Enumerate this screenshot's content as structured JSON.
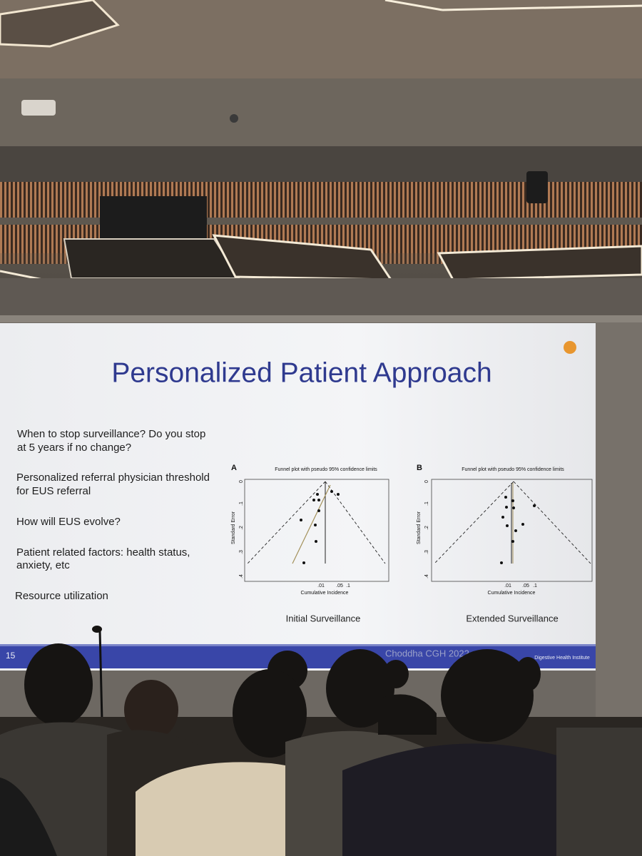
{
  "slide": {
    "title": "Personalized Patient Approach",
    "bullets": [
      [
        "When to stop surveillance? Do you stop",
        "at 5 years if no change?"
      ],
      [
        "Personalized referral physician threshold",
        "for EUS referral"
      ],
      [
        "How will EUS evolve?"
      ],
      [
        "Patient related factors: health status,",
        "anxiety, etc"
      ],
      [
        "Resource utilization"
      ]
    ],
    "figures": [
      {
        "panel": "A",
        "plot_title": "Funnel plot with pseudo 95% confidence limits",
        "y_label": "Standard Error",
        "x_label": "Cumulative Incidence",
        "y_ticks": [
          "0",
          ".1",
          ".2",
          ".3",
          ".4"
        ],
        "x_ticks": [
          ".01",
          ".05",
          ".1"
        ],
        "caption": "Initial Surveillance"
      },
      {
        "panel": "B",
        "plot_title": "Funnel plot with pseudo 95% confidence limits",
        "y_label": "Standard Error",
        "x_label": "Cumulative Incidence",
        "y_ticks": [
          "0",
          ".1",
          ".2",
          ".3",
          ".4"
        ],
        "x_ticks": [
          ".01",
          ".05",
          ".1"
        ],
        "caption": "Extended Surveillance"
      }
    ],
    "slide_number": "15",
    "citation": "Choddha CGH 2022",
    "logo": "Digestive Health Institute"
  }
}
